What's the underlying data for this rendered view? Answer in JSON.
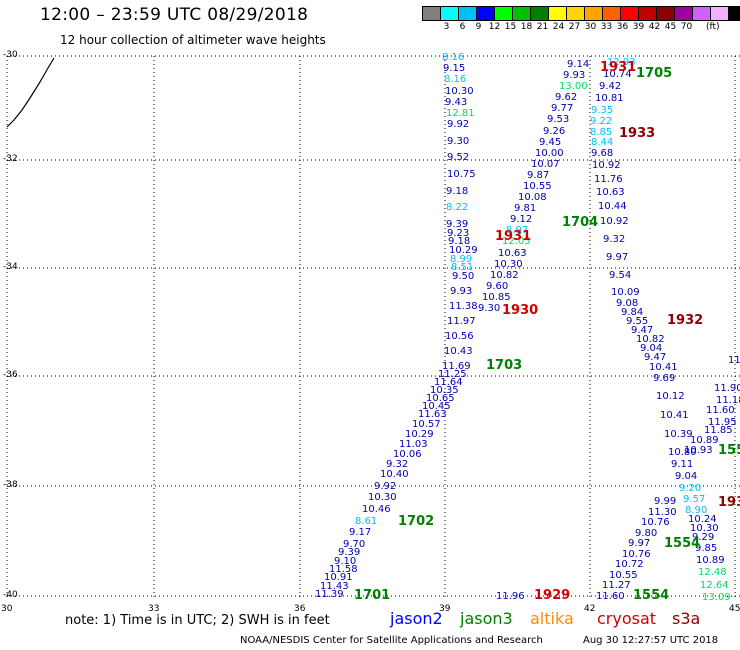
{
  "header": {
    "title": "12:00 – 23:59 UTC 08/29/2018",
    "subtitle": "12 hour collection of altimeter wave heights"
  },
  "scale": {
    "unit_label": "(ft)",
    "bins": [
      {
        "label": "",
        "color": "#808080"
      },
      {
        "label": "3",
        "color": "#00ffff"
      },
      {
        "label": "6",
        "color": "#00bfff"
      },
      {
        "label": "9",
        "color": "#0000ff"
      },
      {
        "label": "12",
        "color": "#00ff00"
      },
      {
        "label": "15",
        "color": "#00c000"
      },
      {
        "label": "18",
        "color": "#008000"
      },
      {
        "label": "21",
        "color": "#ffff00"
      },
      {
        "label": "24",
        "color": "#ffd700"
      },
      {
        "label": "27",
        "color": "#ffa500"
      },
      {
        "label": "30",
        "color": "#ff6000"
      },
      {
        "label": "33",
        "color": "#ff0000"
      },
      {
        "label": "36",
        "color": "#c00000"
      },
      {
        "label": "39",
        "color": "#8b0000"
      },
      {
        "label": "42",
        "color": "#a000a0"
      },
      {
        "label": "45",
        "color": "#d060ff"
      },
      {
        "label": "70",
        "color": "#f0b0ff"
      },
      {
        "label": "",
        "color": "#000000"
      }
    ]
  },
  "axes": {
    "lat_labels": [
      "-30",
      "-32",
      "-34",
      "-36",
      "-38",
      "-40"
    ],
    "lon_labels": [
      "30",
      "33",
      "36",
      "39",
      "42",
      "45"
    ]
  },
  "tracks": {
    "track_a": [
      "8.16",
      "9.15",
      "8.16",
      "10.30",
      "9.43",
      "12.81",
      "9.92",
      "9.30",
      "9.52",
      "10.75",
      "9.18",
      "8.22",
      "9.39",
      "9.23",
      "9.18",
      "10.29",
      "8.99",
      "8.51",
      "9.50",
      "9.93",
      "11.38",
      "11.97",
      "10.56",
      "10.43",
      "11.69",
      "11.25",
      "11.64",
      "10.35",
      "10.65",
      "10.45",
      "11.63",
      "10.57",
      "10.29",
      "11.03",
      "10.06",
      "9.32",
      "10.40",
      "9.92",
      "10.30",
      "10.46",
      "8.61",
      "9.17",
      "9.70",
      "9.39",
      "9.10",
      "11.58",
      "10.91",
      "11.43",
      "11.39"
    ],
    "track_a_colors": [
      "#00bfff",
      "#0000b0",
      "#00bfff",
      "#0000b0",
      "#0000b0",
      "#00e060",
      "#0000b0",
      "#0000b0",
      "#0000b0",
      "#0000b0",
      "#0000b0",
      "#00bfff",
      "#0000b0",
      "#0000b0",
      "#0000b0",
      "#0000b0",
      "#00bfff",
      "#00bfff",
      "#0000b0",
      "#0000b0",
      "#0000b0",
      "#0000b0",
      "#0000b0",
      "#0000b0",
      "#0000b0",
      "#0000b0",
      "#0000b0",
      "#0000b0",
      "#0000b0",
      "#0000b0",
      "#0000b0",
      "#0000b0",
      "#0000b0",
      "#0000b0",
      "#0000b0",
      "#0000b0",
      "#0000b0",
      "#0000b0",
      "#0000b0",
      "#0000b0",
      "#00bfff",
      "#0000b0",
      "#0000b0",
      "#0000b0",
      "#0000b0",
      "#0000b0",
      "#0000b0",
      "#0000b0",
      "#0000b0"
    ],
    "track_b": [
      "9.14",
      "9.93",
      "13.00",
      "9.62",
      "9.77",
      "9.53",
      "9.26",
      "9.45",
      "10.00",
      "10.07",
      "9.87",
      "10.55",
      "10.08",
      "9.81",
      "9.12",
      "8.97",
      "12.05",
      "10.63",
      "10.30",
      "10.82",
      "9.60",
      "10.85",
      "9.30"
    ],
    "track_b_colors": [
      "#0000b0",
      "#0000b0",
      "#00e060",
      "#0000b0",
      "#0000b0",
      "#0000b0",
      "#0000b0",
      "#0000b0",
      "#0000b0",
      "#0000b0",
      "#0000b0",
      "#0000b0",
      "#0000b0",
      "#0000b0",
      "#0000b0",
      "#00bfff",
      "#00e060",
      "#0000b0",
      "#0000b0",
      "#0000b0",
      "#0000b0",
      "#0000b0",
      "#0000b0"
    ],
    "track_c": [
      "12.93",
      "10.74",
      "9.42",
      "10.81",
      "9.35",
      "9.22",
      "8.85",
      "8.44",
      "9.68",
      "10.92",
      "11.76",
      "10.63",
      "10.44",
      "10.92",
      "9.32",
      "9.97",
      "9.54",
      "10.09",
      "9.08",
      "9.84",
      "9.55",
      "9.47",
      "10.82",
      "9.04",
      "9.47",
      "10.41",
      "9.69",
      "10.12",
      "10.41",
      "10.39",
      "10.80",
      "9.11",
      "9.04",
      "9.20",
      "9.57",
      "8.90",
      "10.24",
      "10.30",
      "9.29",
      "9.85",
      "10.89",
      "12.48",
      "12.64",
      "13.09"
    ],
    "track_c_colors": [
      "#00bfff",
      "#0000b0",
      "#0000b0",
      "#0000b0",
      "#00bfff",
      "#00bfff",
      "#00bfff",
      "#00bfff",
      "#0000b0",
      "#0000b0",
      "#0000b0",
      "#0000b0",
      "#0000b0",
      "#0000b0",
      "#0000b0",
      "#0000b0",
      "#0000b0",
      "#0000b0",
      "#0000b0",
      "#0000b0",
      "#0000b0",
      "#0000b0",
      "#0000b0",
      "#0000b0",
      "#0000b0",
      "#0000b0",
      "#0000b0",
      "#0000b0",
      "#0000b0",
      "#0000b0",
      "#0000b0",
      "#0000b0",
      "#0000b0",
      "#00bfff",
      "#00bfff",
      "#00bfff",
      "#0000b0",
      "#0000b0",
      "#0000b0",
      "#0000b0",
      "#0000b0",
      "#00e060",
      "#00e060",
      "#00e060"
    ],
    "track_d": [
      "9.99",
      "11.30",
      "10.76",
      "9.80",
      "9.97",
      "10.76",
      "10.72",
      "10.55",
      "11.27",
      "11.60"
    ],
    "track_e": [
      "11.96"
    ],
    "track_f": [
      "11",
      "11.90",
      "11.18",
      "11.60",
      "11.95",
      "11.85",
      "10.89",
      "10.93"
    ]
  },
  "pass_labels": [
    {
      "text": "1931",
      "color": "#d00000"
    },
    {
      "text": "1705",
      "color": "#008000"
    },
    {
      "text": "1933",
      "color": "#8b0000"
    },
    {
      "text": "1704",
      "color": "#008000"
    },
    {
      "text": "1931",
      "color": "#d00000"
    },
    {
      "text": "1930",
      "color": "#d00000"
    },
    {
      "text": "1932",
      "color": "#8b0000"
    },
    {
      "text": "1703",
      "color": "#008000"
    },
    {
      "text": "1702",
      "color": "#008000"
    },
    {
      "text": "1554",
      "color": "#008000"
    },
    {
      "text": "1701",
      "color": "#008000"
    },
    {
      "text": "1929",
      "color": "#d00000"
    },
    {
      "text": "1554",
      "color": "#008000"
    },
    {
      "text": "155",
      "color": "#008000"
    },
    {
      "text": "193",
      "color": "#8b0000"
    }
  ],
  "footer": {
    "note": "note: 1) Time is in UTC; 2) SWH is in feet",
    "satellites": [
      {
        "name": "jason2",
        "color": "#0000ff"
      },
      {
        "name": "jason3",
        "color": "#008000"
      },
      {
        "name": "altika",
        "color": "#ff8c00"
      },
      {
        "name": "cryosat",
        "color": "#d00000"
      },
      {
        "name": "s3a",
        "color": "#8b0000"
      }
    ],
    "credit": "NOAA/NESDIS Center for Satellite Applications and Research",
    "timestamp": "Aug 30 12:27:57 UTC 2018"
  }
}
